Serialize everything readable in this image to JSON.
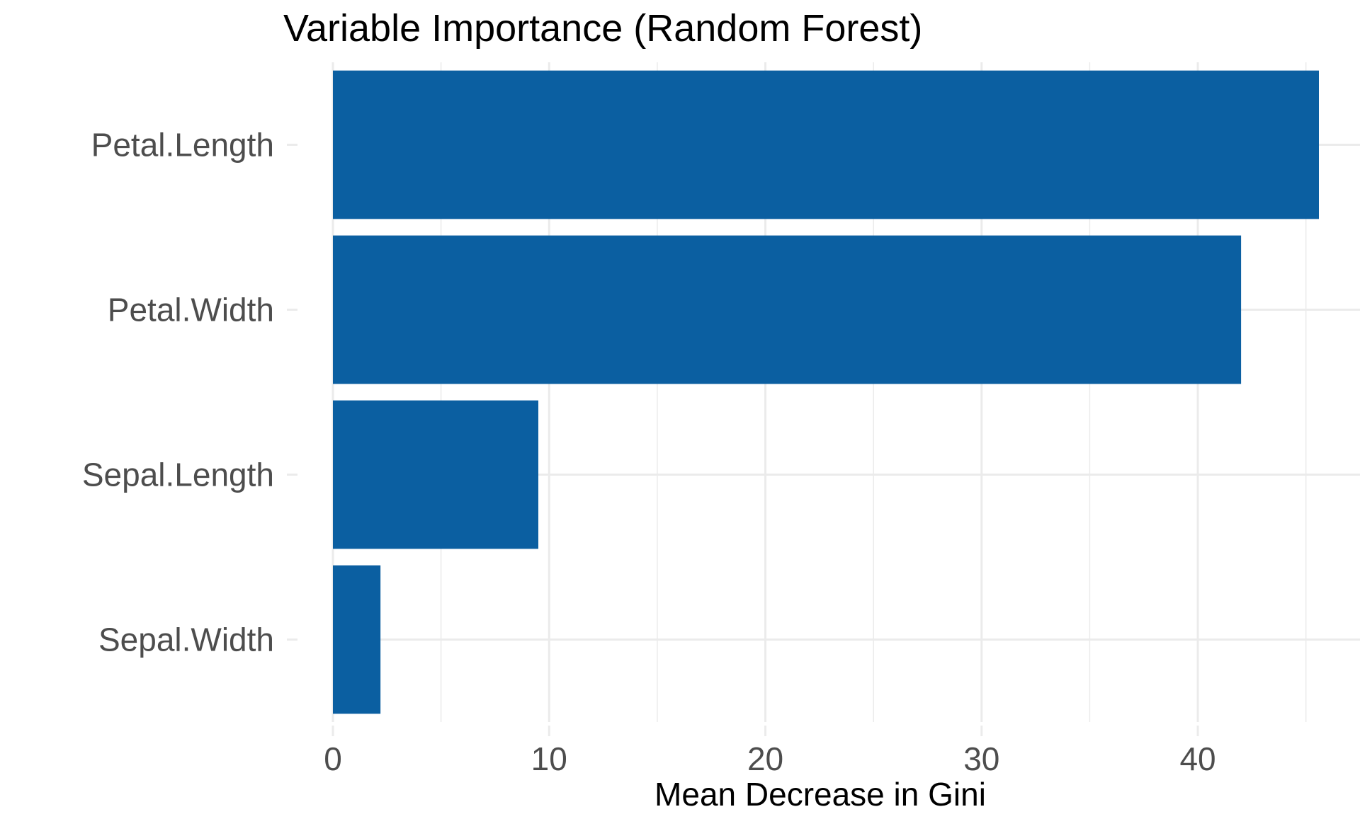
{
  "chart_data": {
    "type": "bar",
    "orientation": "horizontal",
    "title": "Variable Importance (Random Forest)",
    "xlabel": "Mean Decrease in Gini",
    "ylabel": "",
    "categories": [
      "Petal.Length",
      "Petal.Width",
      "Sepal.Length",
      "Sepal.Width"
    ],
    "values": [
      45.6,
      42.0,
      9.5,
      2.2
    ],
    "xlim": [
      0,
      47.5
    ],
    "xticks": [
      0,
      10,
      20,
      30,
      40
    ],
    "grid": true,
    "legend": "none",
    "bar_color": "#0b5fa1",
    "grid_color": "#ebebeb",
    "tick_label_color": "#4d4d4d",
    "title_color": "#000000"
  }
}
